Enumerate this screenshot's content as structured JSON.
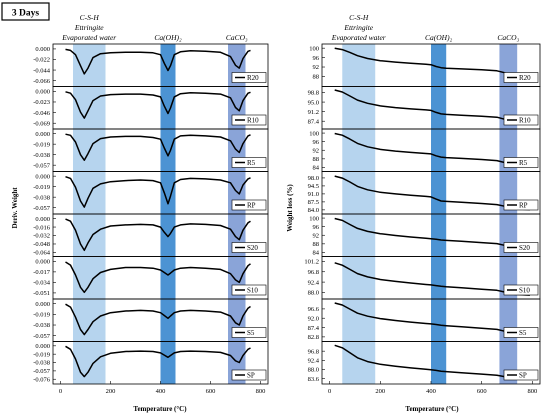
{
  "figure": {
    "badge": "3 Days",
    "bands": [
      {
        "label_lines": [
          "C-S-H",
          "Ettringite",
          "Evaporated water"
        ],
        "x_range": [
          50,
          180
        ],
        "color": "#b6d4ee"
      },
      {
        "label_lines": [
          "Ca(OH)₂"
        ],
        "x_range": [
          400,
          460
        ],
        "color": "#4c93d3"
      },
      {
        "label_lines": [
          "CaCO₃"
        ],
        "x_range": [
          670,
          740
        ],
        "color": "#8aa4d8"
      }
    ]
  },
  "chart_data": [
    {
      "type": "line",
      "xlabel": "Temperature (°C)",
      "ylabel": "Deriv. Weight",
      "x_ticks": [
        0,
        200,
        400,
        600,
        800
      ],
      "xlim": [
        -30,
        830
      ],
      "panels": [
        {
          "name": "R20",
          "yticks": [
            "0.000",
            "-0.022",
            "-0.044",
            "-0.066"
          ],
          "ylim": [
            -0.072,
            0.004
          ],
          "x": [
            20,
            40,
            60,
            80,
            95,
            110,
            130,
            160,
            200,
            260,
            320,
            370,
            400,
            415,
            430,
            440,
            455,
            480,
            520,
            580,
            640,
            680,
            700,
            715,
            730,
            750,
            760
          ],
          "y": [
            -0.001,
            -0.003,
            -0.012,
            -0.035,
            -0.052,
            -0.04,
            -0.018,
            -0.01,
            -0.008,
            -0.007,
            -0.007,
            -0.008,
            -0.012,
            -0.03,
            -0.045,
            -0.035,
            -0.012,
            -0.006,
            -0.004,
            -0.005,
            -0.007,
            -0.016,
            -0.034,
            -0.04,
            -0.02,
            -0.005,
            -0.003
          ]
        },
        {
          "name": "R10",
          "yticks": [
            "0.000",
            "-0.023",
            "-0.046",
            "-0.069"
          ],
          "ylim": [
            -0.075,
            0.004
          ],
          "x": [
            20,
            40,
            60,
            80,
            95,
            110,
            130,
            160,
            200,
            260,
            320,
            370,
            400,
            415,
            430,
            440,
            455,
            480,
            520,
            580,
            640,
            680,
            700,
            715,
            730,
            750,
            760
          ],
          "y": [
            -0.001,
            -0.004,
            -0.018,
            -0.045,
            -0.058,
            -0.042,
            -0.02,
            -0.01,
            -0.007,
            -0.006,
            -0.006,
            -0.008,
            -0.012,
            -0.032,
            -0.048,
            -0.036,
            -0.012,
            -0.005,
            -0.003,
            -0.004,
            -0.006,
            -0.014,
            -0.035,
            -0.042,
            -0.02,
            -0.004,
            -0.002
          ]
        },
        {
          "name": "R5",
          "yticks": [
            "0.000",
            "-0.019",
            "-0.038",
            "-0.057"
          ],
          "ylim": [
            -0.063,
            0.003
          ],
          "x": [
            20,
            40,
            60,
            80,
            95,
            110,
            130,
            160,
            200,
            260,
            320,
            370,
            400,
            415,
            430,
            440,
            455,
            480,
            520,
            580,
            640,
            680,
            700,
            715,
            730,
            750,
            760
          ],
          "y": [
            -0.001,
            -0.003,
            -0.015,
            -0.038,
            -0.048,
            -0.036,
            -0.018,
            -0.009,
            -0.006,
            -0.005,
            -0.005,
            -0.007,
            -0.01,
            -0.026,
            -0.04,
            -0.03,
            -0.01,
            -0.004,
            -0.003,
            -0.004,
            -0.006,
            -0.013,
            -0.028,
            -0.034,
            -0.018,
            -0.004,
            -0.002
          ]
        },
        {
          "name": "RP",
          "yticks": [
            "0.000",
            "-0.019",
            "-0.038",
            "-0.057"
          ],
          "ylim": [
            -0.063,
            0.003
          ],
          "x": [
            20,
            40,
            60,
            80,
            95,
            110,
            130,
            160,
            200,
            260,
            320,
            370,
            400,
            415,
            430,
            440,
            455,
            480,
            520,
            580,
            640,
            680,
            700,
            715,
            730,
            750,
            760
          ],
          "y": [
            -0.001,
            -0.004,
            -0.02,
            -0.045,
            -0.056,
            -0.04,
            -0.022,
            -0.014,
            -0.01,
            -0.008,
            -0.007,
            -0.008,
            -0.012,
            -0.03,
            -0.05,
            -0.036,
            -0.012,
            -0.006,
            -0.004,
            -0.005,
            -0.007,
            -0.012,
            -0.026,
            -0.032,
            -0.016,
            -0.005,
            -0.003
          ]
        },
        {
          "name": "S20",
          "yticks": [
            "0.000",
            "-0.016",
            "-0.032",
            "-0.048",
            "-0.064"
          ],
          "ylim": [
            -0.066,
            0.003
          ],
          "x": [
            20,
            40,
            60,
            80,
            95,
            110,
            130,
            160,
            200,
            260,
            320,
            370,
            400,
            415,
            430,
            440,
            455,
            480,
            520,
            580,
            640,
            680,
            700,
            715,
            730,
            750,
            760
          ],
          "y": [
            -0.001,
            -0.005,
            -0.022,
            -0.048,
            -0.06,
            -0.046,
            -0.03,
            -0.02,
            -0.014,
            -0.012,
            -0.011,
            -0.012,
            -0.016,
            -0.026,
            -0.034,
            -0.028,
            -0.016,
            -0.012,
            -0.01,
            -0.011,
            -0.013,
            -0.02,
            -0.034,
            -0.04,
            -0.022,
            -0.008,
            -0.005
          ]
        },
        {
          "name": "S10",
          "yticks": [
            "0.000",
            "-0.017",
            "-0.034",
            "-0.051"
          ],
          "ylim": [
            -0.056,
            0.003
          ],
          "x": [
            20,
            40,
            60,
            80,
            95,
            110,
            130,
            160,
            200,
            260,
            320,
            370,
            400,
            415,
            430,
            440,
            455,
            480,
            520,
            580,
            640,
            680,
            700,
            715,
            730,
            750,
            760
          ],
          "y": [
            -0.001,
            -0.006,
            -0.022,
            -0.042,
            -0.05,
            -0.042,
            -0.028,
            -0.018,
            -0.013,
            -0.01,
            -0.01,
            -0.011,
            -0.014,
            -0.018,
            -0.022,
            -0.019,
            -0.014,
            -0.011,
            -0.01,
            -0.011,
            -0.013,
            -0.02,
            -0.03,
            -0.034,
            -0.02,
            -0.007,
            -0.004
          ]
        },
        {
          "name": "S5",
          "yticks": [
            "0.000",
            "-0.019",
            "-0.038",
            "-0.057"
          ],
          "ylim": [
            -0.062,
            0.003
          ],
          "x": [
            20,
            40,
            60,
            80,
            95,
            110,
            130,
            160,
            200,
            260,
            320,
            370,
            400,
            415,
            430,
            440,
            455,
            480,
            520,
            580,
            640,
            680,
            700,
            715,
            730,
            750,
            760
          ],
          "y": [
            -0.001,
            -0.006,
            -0.024,
            -0.046,
            -0.055,
            -0.046,
            -0.032,
            -0.022,
            -0.016,
            -0.013,
            -0.012,
            -0.013,
            -0.016,
            -0.021,
            -0.026,
            -0.022,
            -0.016,
            -0.013,
            -0.012,
            -0.013,
            -0.015,
            -0.022,
            -0.034,
            -0.038,
            -0.022,
            -0.008,
            -0.005
          ]
        },
        {
          "name": "SP",
          "yticks": [
            "0.000",
            "-0.019",
            "-0.038",
            "-0.057",
            "-0.076"
          ],
          "ylim": [
            -0.08,
            0.003
          ],
          "x": [
            20,
            40,
            60,
            80,
            95,
            110,
            130,
            160,
            200,
            260,
            320,
            370,
            400,
            415,
            430,
            440,
            455,
            480,
            520,
            580,
            640,
            680,
            700,
            715,
            730,
            750,
            760
          ],
          "y": [
            -0.001,
            -0.008,
            -0.03,
            -0.06,
            -0.07,
            -0.06,
            -0.04,
            -0.025,
            -0.017,
            -0.013,
            -0.012,
            -0.013,
            -0.016,
            -0.021,
            -0.026,
            -0.022,
            -0.016,
            -0.013,
            -0.012,
            -0.013,
            -0.015,
            -0.022,
            -0.034,
            -0.038,
            -0.022,
            -0.008,
            -0.005
          ]
        }
      ]
    },
    {
      "type": "line",
      "xlabel": "Temperature (°C)",
      "ylabel": "Weight loss (%)",
      "x_ticks": [
        0,
        200,
        400,
        600,
        800
      ],
      "xlim": [
        -30,
        830
      ],
      "panels": [
        {
          "name": "R20",
          "yticks": [
            "100",
            "96",
            "92",
            "88"
          ],
          "ylim": [
            85,
            100.5
          ],
          "x": [
            20,
            50,
            80,
            110,
            150,
            200,
            260,
            320,
            380,
            400,
            420,
            440,
            460,
            520,
            600,
            660,
            690,
            710,
            730,
            760,
            790
          ],
          "y": [
            100,
            99.4,
            98.2,
            96.8,
            95.6,
            94.7,
            94.1,
            93.6,
            93.2,
            93.0,
            92.2,
            91.7,
            91.5,
            91.2,
            90.8,
            90.4,
            89.6,
            88.7,
            88.2,
            87.9,
            87.7
          ]
        },
        {
          "name": "R10",
          "yticks": [
            "98.8",
            "95.0",
            "91.2",
            "87.4"
          ],
          "ylim": [
            85.5,
            100
          ],
          "x": [
            20,
            50,
            80,
            110,
            150,
            200,
            260,
            320,
            380,
            400,
            420,
            440,
            460,
            520,
            600,
            660,
            690,
            710,
            730,
            760,
            790
          ],
          "y": [
            99.8,
            99.0,
            97.4,
            95.8,
            94.5,
            93.5,
            92.8,
            92.3,
            91.9,
            91.7,
            90.9,
            90.3,
            90.1,
            89.8,
            89.4,
            89.0,
            88.2,
            87.3,
            86.8,
            86.5,
            86.3
          ]
        },
        {
          "name": "R5",
          "yticks": [
            "100",
            "96",
            "92",
            "88",
            "84"
          ],
          "ylim": [
            83.5,
            100.5
          ],
          "x": [
            20,
            50,
            80,
            110,
            150,
            200,
            260,
            320,
            380,
            400,
            420,
            440,
            460,
            520,
            600,
            660,
            690,
            710,
            730,
            760,
            790
          ],
          "y": [
            99.8,
            99.0,
            97.2,
            95.2,
            93.6,
            92.4,
            91.6,
            91.0,
            90.5,
            90.3,
            89.4,
            88.8,
            88.6,
            88.2,
            87.7,
            87.2,
            86.3,
            85.4,
            84.9,
            84.6,
            84.4
          ]
        },
        {
          "name": "RP",
          "yticks": [
            "98.0",
            "94.5",
            "91.0",
            "87.5",
            "84.0"
          ],
          "ylim": [
            83.5,
            99.5
          ],
          "x": [
            20,
            50,
            80,
            110,
            150,
            200,
            260,
            320,
            380,
            400,
            420,
            440,
            460,
            520,
            600,
            660,
            690,
            710,
            730,
            760,
            790
          ],
          "y": [
            98.8,
            97.9,
            96.2,
            94.3,
            92.8,
            91.7,
            91.0,
            90.4,
            89.9,
            89.7,
            88.7,
            87.9,
            87.7,
            87.3,
            86.8,
            86.3,
            85.6,
            84.9,
            84.5,
            84.3,
            84.1
          ]
        },
        {
          "name": "S20",
          "yticks": [
            "100",
            "96",
            "92",
            "88",
            "84"
          ],
          "ylim": [
            83.5,
            100.5
          ],
          "x": [
            20,
            50,
            80,
            110,
            150,
            200,
            260,
            320,
            380,
            400,
            420,
            440,
            460,
            520,
            600,
            660,
            690,
            710,
            730,
            760,
            790
          ],
          "y": [
            99.8,
            98.9,
            97.0,
            95.2,
            93.8,
            92.7,
            91.9,
            91.2,
            90.6,
            90.4,
            90.1,
            89.8,
            89.6,
            89.2,
            88.6,
            88.1,
            87.3,
            86.5,
            86.0,
            85.7,
            85.5
          ]
        },
        {
          "name": "S10",
          "yticks": [
            "101.2",
            "96.8",
            "92.4",
            "88.0"
          ],
          "ylim": [
            86.5,
            102
          ],
          "x": [
            20,
            50,
            80,
            110,
            150,
            200,
            260,
            320,
            380,
            400,
            420,
            440,
            460,
            520,
            600,
            660,
            690,
            710,
            730,
            760,
            790
          ],
          "y": [
            100.6,
            99.6,
            97.8,
            96.0,
            94.6,
            93.5,
            92.7,
            92.0,
            91.4,
            91.2,
            90.9,
            90.6,
            90.4,
            90.0,
            89.4,
            88.9,
            88.2,
            87.6,
            87.2,
            87.0,
            86.9
          ]
        },
        {
          "name": "S5",
          "yticks": [
            "96.6",
            "92.0",
            "87.4",
            "82.8"
          ],
          "ylim": [
            82,
            100
          ],
          "x": [
            20,
            50,
            80,
            110,
            150,
            200,
            260,
            320,
            380,
            400,
            420,
            440,
            460,
            520,
            600,
            660,
            690,
            710,
            730,
            760,
            790
          ],
          "y": [
            99.5,
            98.5,
            96.5,
            94.5,
            93.0,
            91.8,
            90.9,
            90.1,
            89.4,
            89.2,
            88.9,
            88.5,
            88.3,
            87.8,
            87.1,
            86.5,
            85.6,
            84.9,
            84.5,
            84.2,
            84.0
          ]
        },
        {
          "name": "SP",
          "yticks": [
            "96.8",
            "92.4",
            "88.0",
            "83.6"
          ],
          "ylim": [
            82.5,
            100
          ],
          "x": [
            20,
            50,
            80,
            110,
            150,
            200,
            260,
            320,
            380,
            400,
            420,
            440,
            460,
            520,
            600,
            660,
            690,
            710,
            730,
            760,
            790
          ],
          "y": [
            99.6,
            98.4,
            96.0,
            93.6,
            91.8,
            90.5,
            89.6,
            88.8,
            88.1,
            87.9,
            87.6,
            87.2,
            87.0,
            86.5,
            85.8,
            85.3,
            84.6,
            84.0,
            83.7,
            83.5,
            83.3
          ]
        }
      ]
    }
  ]
}
